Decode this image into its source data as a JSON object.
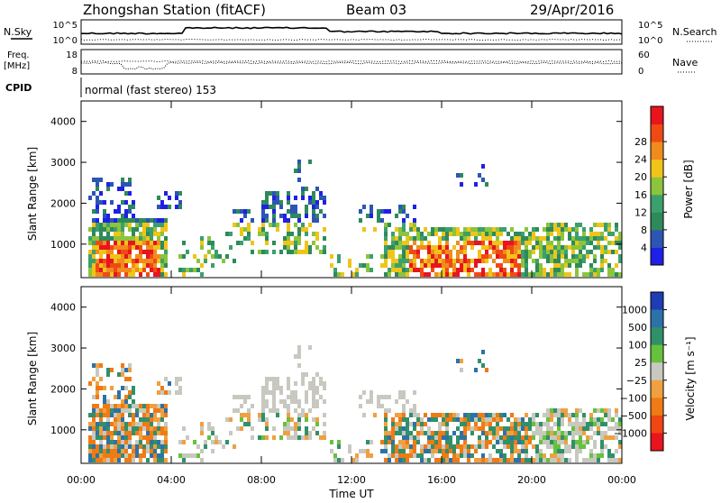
{
  "header": {
    "station": "Zhongshan Station (fitACF)",
    "beam": "Beam 03",
    "date": "29/Apr/2016"
  },
  "top_panels": {
    "noise": {
      "left_label": "N.Sky",
      "right_label": "N.Search",
      "left_ticks": [
        "10^5",
        "10^0"
      ],
      "right_ticks": [
        "10^5",
        "10^0"
      ]
    },
    "freq": {
      "left_label_1": "Freq.",
      "left_label_2": "[MHz]",
      "left_ticks": [
        "18",
        "8"
      ],
      "right_label": "Nave",
      "right_ticks": [
        "60",
        "0"
      ]
    },
    "cpid": {
      "label": "CPID",
      "text": "normal (fast stereo) 153"
    }
  },
  "chart_data": [
    {
      "type": "heatmap",
      "panel": "power",
      "ylabel": "Slant Range [km]",
      "xlabel": "",
      "ylim": [
        180,
        4500
      ],
      "xlim": [
        0,
        24
      ],
      "y_ticks": [
        "1000",
        "2000",
        "3000",
        "4000"
      ],
      "colorbar_label": "Power [dB]",
      "colorbar_ticks": [
        "4",
        "8",
        "12",
        "16",
        "20",
        "24",
        "28"
      ],
      "colorbar_colors": [
        "#1f20e6",
        "#2d55b4",
        "#2e8a5a",
        "#3c9f6e",
        "#8cc43c",
        "#f0c419",
        "#f08c1e",
        "#f04a14",
        "#e8141e"
      ]
    },
    {
      "type": "heatmap",
      "panel": "velocity",
      "ylabel": "Slant Range [km]",
      "xlabel": "Time UT",
      "ylim": [
        180,
        4500
      ],
      "xlim": [
        0,
        24
      ],
      "y_ticks": [
        "1000",
        "2000",
        "3000",
        "4000"
      ],
      "x_ticks": [
        "00:00",
        "04:00",
        "08:00",
        "12:00",
        "16:00",
        "20:00",
        "00:00"
      ],
      "colorbar_label": "Velocity [m s⁻¹]",
      "colorbar_ticks": [
        "1000",
        "500",
        "100",
        "25",
        "−25",
        "−100",
        "−500",
        "−1000"
      ],
      "colorbar_colors": [
        "#1f3cb4",
        "#2c72a8",
        "#30906a",
        "#66c23c",
        "#c8c8c0",
        "#f0a040",
        "#f07a14",
        "#f04614",
        "#e8141e"
      ]
    }
  ]
}
